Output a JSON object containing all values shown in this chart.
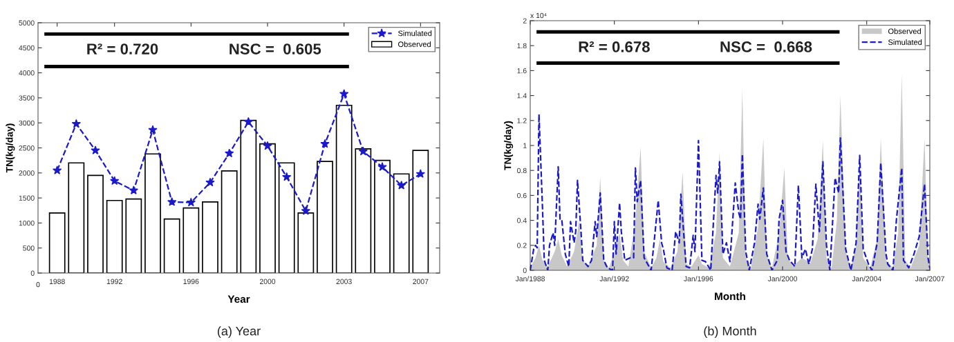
{
  "chart_data": [
    {
      "type": "bar",
      "xlabel": "Year",
      "ylabel": "TN(kg/day)",
      "legend": "top right",
      "annotations": [
        "R² = 0.720",
        "NSC =  0.605",
        "(a) Year",
        "0"
      ],
      "ref_lines": [
        {
          "axis": "y",
          "value": 4775,
          "color": "#000000"
        },
        {
          "axis": "y",
          "value": 4125,
          "color": "#000000"
        }
      ],
      "categories": [
        "1988",
        null,
        null,
        "1992",
        null,
        null,
        null,
        "1996",
        null,
        null,
        null,
        "2000",
        null,
        null,
        null,
        "2003",
        null,
        null,
        null,
        "2007"
      ],
      "ylim": [
        0,
        5000
      ],
      "yticks": [
        0,
        500,
        1000,
        1500,
        2000,
        2500,
        3000,
        3500,
        4000,
        4500,
        5000
      ],
      "series": [
        {
          "name": "Simulated",
          "type": "line",
          "color": "#1a1ac8",
          "marker": "star",
          "line_style": "dashed",
          "values": [
            2050,
            2980,
            2450,
            1840,
            1650,
            2860,
            1420,
            1410,
            1810,
            2390,
            3020,
            2540,
            1920,
            1240,
            2580,
            3580,
            2430,
            2120,
            1750,
            1980
          ]
        },
        {
          "name": "Observed",
          "color": "#ffffff",
          "values": [
            1200,
            2200,
            1950,
            1450,
            1480,
            2380,
            1080,
            1300,
            1420,
            2040,
            3050,
            2580,
            2200,
            1200,
            2230,
            3350,
            2480,
            2250,
            1980,
            2450
          ]
        }
      ]
    },
    {
      "type": "area",
      "xlabel": "Month",
      "ylabel": "TN(kg/day)",
      "legend": "top right",
      "annotations": [
        "R² = 0.678",
        "NSC =  0.668",
        "(b) Month",
        "x 10⁴"
      ],
      "ref_lines": [
        {
          "axis": "y",
          "value": 1.91,
          "color": "#000000"
        },
        {
          "axis": "y",
          "value": 1.66,
          "color": "#000000"
        }
      ],
      "xlim": [
        "1988-01",
        "2007-01"
      ],
      "xticks": [
        {
          "value": "1988-01",
          "label": "Jan/1988"
        },
        {
          "value": "1992-01",
          "label": "Jan/1992"
        },
        {
          "value": "1996-01",
          "label": "Jan/1996"
        },
        {
          "value": "2000-01",
          "label": "Jan/2000"
        },
        {
          "value": "2004-01",
          "label": "Jan/2004"
        },
        {
          "value": "2007-01",
          "label": "Jan/2007"
        }
      ],
      "ylim": [
        0,
        2
      ],
      "yticks": [
        0,
        0.2,
        0.4,
        0.6,
        0.8,
        1,
        1.2,
        1.4,
        1.6,
        1.8,
        2
      ],
      "series": [
        {
          "name": "Observed",
          "color": "#c8c8c8",
          "x": [
            "1988-01",
            "1988-04",
            "1988-06",
            "1988-08",
            "1988-11",
            "1989-03",
            "1989-05",
            "1989-07",
            "1989-10",
            "1990-02",
            "1990-05",
            "1990-07",
            "1990-10",
            "1991-03",
            "1991-05",
            "1991-07",
            "1991-10",
            "1992-01",
            "1992-04",
            "1992-06",
            "1992-09",
            "1993-01",
            "1993-04",
            "1993-06",
            "1993-10",
            "1994-01",
            "1994-03",
            "1994-05",
            "1994-09",
            "1995-01",
            "1995-04",
            "1995-06",
            "1995-09",
            "1996-01",
            "1996-03",
            "1996-07",
            "1996-11",
            "1997-01",
            "1997-03",
            "1997-07",
            "1997-12",
            "1998-02",
            "1998-04",
            "1998-07",
            "1998-11",
            "1999-02",
            "1999-04",
            "1999-07",
            "1999-11",
            "2000-02",
            "2000-04",
            "2000-07",
            "2000-12",
            "2001-05",
            "2001-09",
            "2001-12",
            "2002-02",
            "2002-05",
            "2002-08",
            "2002-10",
            "2003-01",
            "2003-04",
            "2003-07",
            "2003-09",
            "2003-11",
            "2004-03",
            "2004-07",
            "2004-09",
            "2004-12",
            "2005-04",
            "2005-07",
            "2005-09",
            "2005-11",
            "2006-02",
            "2006-07",
            "2006-10",
            "2006-12",
            "2007-01"
          ],
          "values": [
            0.02,
            0.1,
            0.2,
            0.08,
            0.03,
            0.15,
            0.25,
            0.12,
            0.03,
            0.15,
            0.4,
            0.08,
            0.03,
            0.2,
            0.75,
            0.08,
            0.02,
            0.15,
            0.3,
            0.08,
            0.03,
            0.4,
            0.99,
            0.15,
            0.02,
            0.1,
            0.25,
            0.07,
            0.02,
            0.15,
            0.79,
            0.05,
            0.03,
            0.12,
            0.05,
            0.02,
            0.3,
            0.95,
            0.1,
            0.03,
            0.3,
            1.45,
            0.1,
            0.02,
            0.35,
            1.06,
            0.12,
            0.02,
            0.3,
            0.82,
            0.1,
            0.03,
            0.1,
            0.06,
            0.25,
            1.04,
            0.1,
            0.02,
            0.4,
            1.4,
            0.15,
            0.02,
            0.2,
            0.93,
            0.1,
            0.02,
            0.25,
            1.06,
            0.08,
            0.02,
            0.3,
            1.57,
            0.08,
            0.02,
            0.2,
            1.06,
            0.1,
            0.03
          ]
        },
        {
          "name": "Simulated",
          "type": "line",
          "color": "#1a1ac8",
          "line_style": "dashed",
          "x": [
            "1988-01",
            "1988-03",
            "1988-04",
            "1988-05",
            "1988-06",
            "1988-08",
            "1988-09",
            "1988-11",
            "1988-12",
            "1989-02",
            "1989-03",
            "1989-05",
            "1989-06",
            "1989-07",
            "1989-09",
            "1989-11",
            "1989-12",
            "1990-02",
            "1990-03",
            "1990-04",
            "1990-06",
            "1990-07",
            "1990-10",
            "1990-12",
            "1991-02",
            "1991-03",
            "1991-05",
            "1991-07",
            "1991-09",
            "1991-12",
            "1992-01",
            "1992-02",
            "1992-04",
            "1992-05",
            "1992-07",
            "1992-10",
            "1992-12",
            "1993-01",
            "1993-02",
            "1993-04",
            "1993-06",
            "1993-10",
            "1993-12",
            "1994-02",
            "1994-04",
            "1994-05",
            "1994-07",
            "1994-10",
            "1994-12",
            "1995-02",
            "1995-03",
            "1995-06",
            "1995-08",
            "1995-10",
            "1995-11",
            "1996-01",
            "1996-03",
            "1996-05",
            "1996-08",
            "1996-11",
            "1996-12",
            "1997-01",
            "1997-03",
            "1997-05",
            "1997-07",
            "1997-10",
            "1997-12",
            "1998-01",
            "1998-02",
            "1998-04",
            "1998-06",
            "1998-09",
            "1998-11",
            "1998-12",
            "1999-02",
            "1999-04",
            "1999-07",
            "1999-10",
            "1999-11",
            "2000-01",
            "2000-03",
            "2000-05",
            "2000-08",
            "2000-10",
            "2000-12",
            "2001-02",
            "2001-04",
            "2001-06",
            "2001-08",
            "2001-10",
            "2001-12",
            "2002-02",
            "2002-04",
            "2002-07",
            "2002-09",
            "2002-10",
            "2003-01",
            "2003-04",
            "2003-07",
            "2003-09",
            "2003-11",
            "2004-02",
            "2004-04",
            "2004-07",
            "2004-09",
            "2004-12",
            "2005-01",
            "2005-04",
            "2005-06",
            "2005-09",
            "2005-10",
            "2006-01",
            "2006-04",
            "2006-07",
            "2006-10",
            "2006-12",
            "2007-01"
          ],
          "values": [
            0,
            0.17,
            0.2,
            0.18,
            1.25,
            0.5,
            0.08,
            0,
            0.2,
            0.3,
            0.2,
            0.83,
            0.41,
            0.41,
            0.13,
            0.03,
            0.39,
            0.22,
            0.31,
            0.72,
            0.31,
            0.08,
            0.03,
            0.08,
            0.39,
            0.27,
            0.62,
            0.08,
            0.02,
            0,
            0.39,
            0.13,
            0.54,
            0.31,
            0.08,
            0.1,
            0.1,
            0.82,
            0.55,
            0.72,
            0.1,
            0,
            0.27,
            0.56,
            0.22,
            0.17,
            0.02,
            0,
            0.31,
            0.22,
            0.61,
            0.03,
            0.02,
            0.28,
            0.15,
            1.04,
            0.08,
            0.07,
            0,
            0.76,
            0.62,
            0.87,
            0.13,
            0.22,
            0.07,
            0.7,
            0.46,
            0.41,
            0.93,
            0.15,
            0,
            0.22,
            0.53,
            0.41,
            0.66,
            0.13,
            0,
            0.08,
            0.41,
            0.56,
            0.15,
            0.08,
            0.03,
            0.68,
            0.1,
            0.17,
            0.05,
            0.17,
            0.69,
            0.31,
            0.87,
            0.2,
            0,
            0.74,
            0.62,
            1.06,
            0.17,
            0,
            0.22,
            0.92,
            0.17,
            0.05,
            0,
            0.22,
            0.86,
            0.13,
            0.05,
            0,
            0.41,
            0.82,
            0.08,
            0.02,
            0.13,
            0.27,
            0.69,
            0.1,
            0.02
          ]
        }
      ]
    }
  ]
}
